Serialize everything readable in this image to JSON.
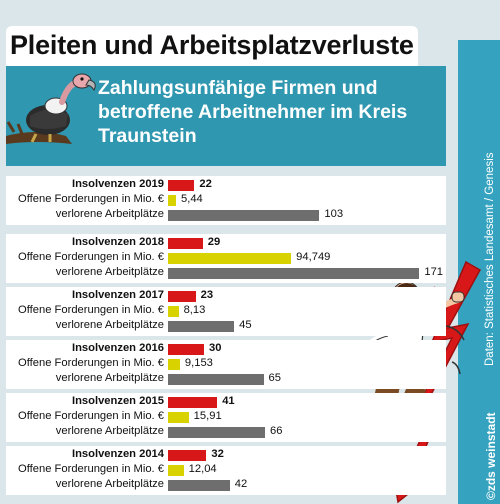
{
  "header": {
    "title": "Pleiten und Arbeitsplatzverluste",
    "subtitle": "Zahlungsunfähige Firmen und betroffene Arbeitnehmer im Kreis Traunstein"
  },
  "source": "Daten: Statistisches Landesamt / Genesis",
  "copyright": "©zds weinstadt",
  "colors": {
    "insolvency": "#d81818",
    "claims": "#d7d200",
    "jobs": "#6e6e6e",
    "panel": "#2f97b0",
    "strip": "#35a3bf"
  },
  "illustrations": [
    "vulture-icon",
    "falling-man-icon",
    "trend-arrow-down-icon"
  ],
  "chart_data": {
    "type": "bar",
    "orientation": "horizontal",
    "title": "Pleiten und Arbeitsplatzverluste",
    "subtitle": "Zahlungsunfähige Firmen und betroffene Arbeitnehmer im Kreis Traunstein",
    "series_labels": [
      "Insolvenzen",
      "Offene Forderungen in Mio. €",
      "verlorene Arbeitplätze"
    ],
    "groups": [
      {
        "year": "2019",
        "insolvencies": 22,
        "insolvencies_label": "22",
        "claims": 5.44,
        "claims_label": "5,44",
        "jobs": 103,
        "jobs_label": "103",
        "jobs_row_label": "verlorene Arbeitplätze"
      },
      {
        "year": "2018",
        "insolvencies": 29,
        "insolvencies_label": "29",
        "claims": 94.749,
        "claims_label": "94,749",
        "jobs": 171,
        "jobs_label": "171",
        "jobs_row_label": "verlorene Arbeitplätze"
      },
      {
        "year": "2017",
        "insolvencies": 23,
        "insolvencies_label": "23",
        "claims": 8.13,
        "claims_label": "8,13",
        "jobs": 45,
        "jobs_label": "45",
        "jobs_row_label": "verlorene Arbeitplätze"
      },
      {
        "year": "2016",
        "insolvencies": 30,
        "insolvencies_label": "30",
        "claims": 9.153,
        "claims_label": "9,153",
        "jobs": 65,
        "jobs_label": "65",
        "jobs_row_label": "verlorene Arbeitplätze"
      },
      {
        "year": "2015",
        "insolvencies": 41,
        "insolvencies_label": "41",
        "claims": 15.91,
        "claims_label": "15,91",
        "jobs": 66,
        "jobs_label": "66",
        "jobs_row_label": "verlorene Arbeitplätze"
      },
      {
        "year": "2014",
        "insolvencies": 32,
        "insolvencies_label": "32",
        "claims": 12.04,
        "claims_label": "12,04",
        "jobs": 42,
        "jobs_label": "42",
        "jobs_row_label": "verlorene Arbeitplätze"
      }
    ]
  }
}
